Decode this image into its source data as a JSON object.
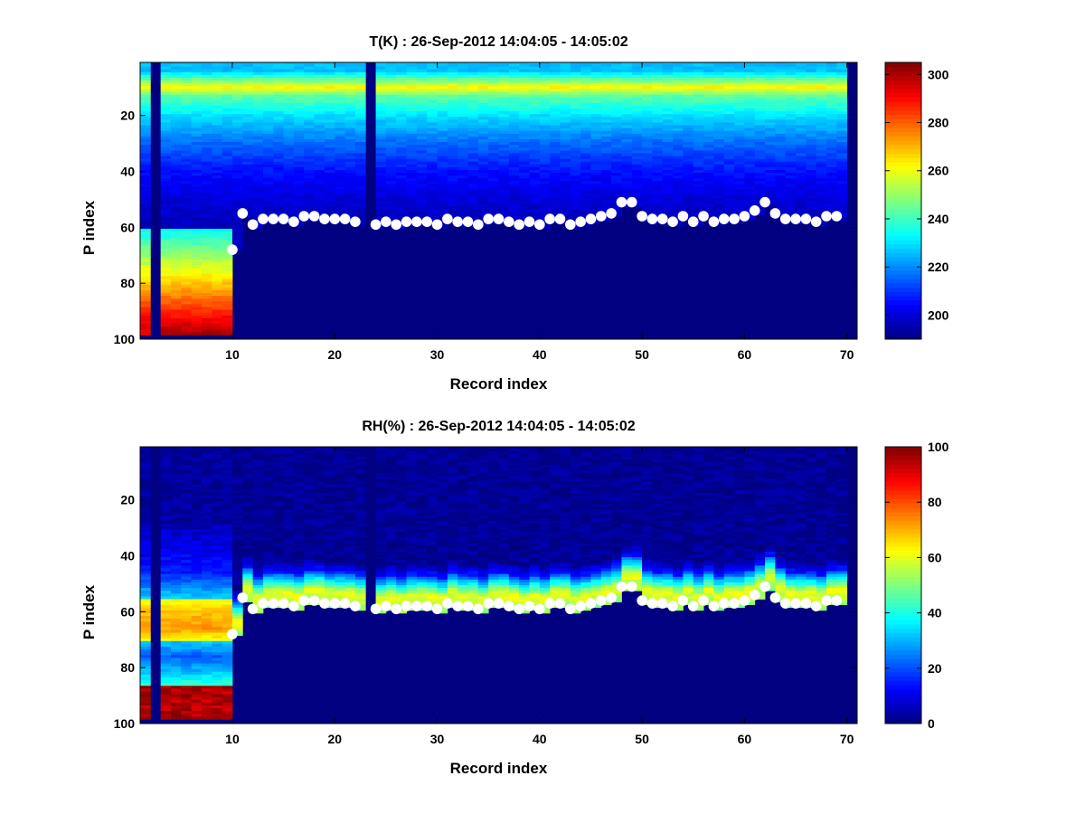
{
  "chart_data": [
    {
      "type": "heatmap",
      "title": "T(K) : 26-Sep-2012 14:04:05 - 14:05:02",
      "xlabel": "Record index",
      "ylabel": "P index",
      "xlim": [
        1,
        71
      ],
      "ylim": [
        100,
        1
      ],
      "xticks": [
        "10",
        "20",
        "30",
        "40",
        "50",
        "60",
        "70"
      ],
      "yticks": [
        "20",
        "40",
        "60",
        "80",
        "100"
      ],
      "colorbar": {
        "range": [
          190,
          305
        ],
        "ticks": [
          "200",
          "220",
          "240",
          "260",
          "280",
          "300"
        ]
      },
      "colormap": "jet",
      "missing_columns": [
        2,
        23,
        70
      ],
      "marker_x": [
        10,
        11,
        12,
        13,
        14,
        15,
        16,
        17,
        18,
        19,
        20,
        21,
        22,
        24,
        25,
        26,
        27,
        28,
        29,
        30,
        31,
        32,
        33,
        34,
        35,
        36,
        37,
        38,
        39,
        40,
        41,
        42,
        43,
        44,
        45,
        46,
        47,
        48,
        49,
        50,
        51,
        52,
        53,
        54,
        55,
        56,
        57,
        58,
        59,
        60,
        61,
        62,
        63,
        64,
        65,
        66,
        67,
        68,
        69
      ],
      "marker_y": [
        68,
        55,
        59,
        57,
        57,
        57,
        58,
        56,
        56,
        57,
        57,
        57,
        58,
        59,
        58,
        59,
        58,
        58,
        58,
        59,
        57,
        58,
        58,
        59,
        57,
        57,
        58,
        59,
        58,
        59,
        57,
        57,
        59,
        58,
        57,
        56,
        55,
        51,
        51,
        56,
        57,
        57,
        58,
        56,
        58,
        56,
        58,
        57,
        57,
        56,
        54,
        51,
        55,
        57,
        57,
        57,
        58,
        56,
        56
      ]
    },
    {
      "type": "heatmap",
      "title": "RH(%) : 26-Sep-2012 14:04:05 - 14:05:02",
      "xlabel": "Record index",
      "ylabel": "P index",
      "xlim": [
        1,
        71
      ],
      "ylim": [
        100,
        1
      ],
      "xticks": [
        "10",
        "20",
        "30",
        "40",
        "50",
        "60",
        "70"
      ],
      "yticks": [
        "20",
        "40",
        "60",
        "80",
        "100"
      ],
      "colorbar": {
        "range": [
          0,
          100
        ],
        "ticks": [
          "0",
          "20",
          "40",
          "60",
          "80",
          "100"
        ]
      },
      "colormap": "jet",
      "missing_columns": [
        2,
        23,
        70
      ],
      "marker_x": [
        10,
        11,
        12,
        13,
        14,
        15,
        16,
        17,
        18,
        19,
        20,
        21,
        22,
        24,
        25,
        26,
        27,
        28,
        29,
        30,
        31,
        32,
        33,
        34,
        35,
        36,
        37,
        38,
        39,
        40,
        41,
        42,
        43,
        44,
        45,
        46,
        47,
        48,
        49,
        50,
        51,
        52,
        53,
        54,
        55,
        56,
        57,
        58,
        59,
        60,
        61,
        62,
        63,
        64,
        65,
        66,
        67,
        68,
        69
      ],
      "marker_y": [
        68,
        55,
        59,
        57,
        57,
        57,
        58,
        56,
        56,
        57,
        57,
        57,
        58,
        59,
        58,
        59,
        58,
        58,
        58,
        59,
        57,
        58,
        58,
        59,
        57,
        57,
        58,
        59,
        58,
        59,
        57,
        57,
        59,
        58,
        57,
        56,
        55,
        51,
        51,
        56,
        57,
        57,
        58,
        56,
        58,
        56,
        58,
        57,
        57,
        56,
        54,
        51,
        55,
        57,
        57,
        57,
        58,
        56,
        56
      ]
    }
  ]
}
